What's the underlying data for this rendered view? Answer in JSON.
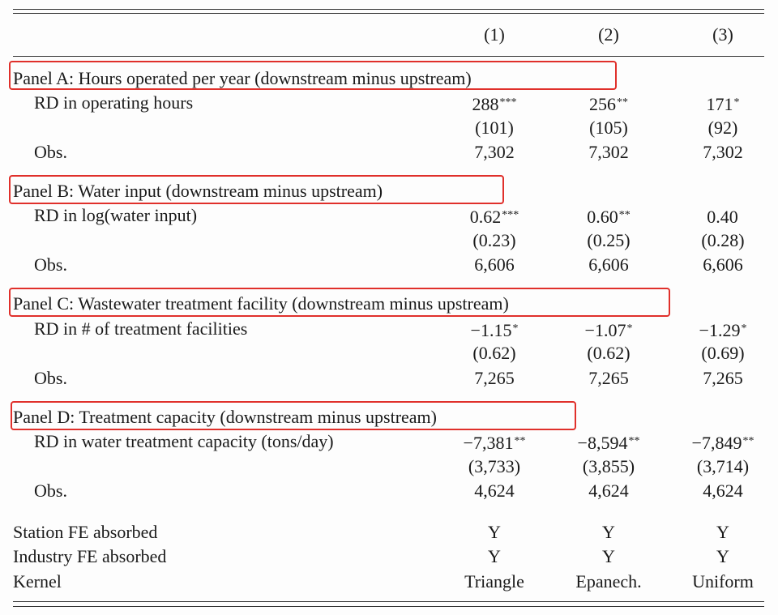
{
  "header": {
    "col1": "(1)",
    "col2": "(2)",
    "col3": "(3)"
  },
  "panel_a": {
    "title": "Panel A: Hours operated per year (downstream minus upstream)",
    "rows": [
      {
        "label": "RD in operating hours",
        "v1": "288",
        "s1": "***",
        "v2": "256",
        "s2": "**",
        "v3": "171",
        "s3": "*"
      },
      {
        "label": "",
        "v1": "(101)",
        "s1": "",
        "v2": "(105)",
        "s2": "",
        "v3": "(92)",
        "s3": ""
      },
      {
        "label": "Obs.",
        "v1": "7,302",
        "s1": "",
        "v2": "7,302",
        "s2": "",
        "v3": "7,302",
        "s3": ""
      }
    ]
  },
  "panel_b": {
    "title": "Panel B: Water input (downstream minus upstream)",
    "rows": [
      {
        "label": "RD in log(water input)",
        "v1": "0.62",
        "s1": "***",
        "v2": "0.60",
        "s2": "**",
        "v3": "0.40",
        "s3": ""
      },
      {
        "label": "",
        "v1": "(0.23)",
        "s1": "",
        "v2": "(0.25)",
        "s2": "",
        "v3": "(0.28)",
        "s3": ""
      },
      {
        "label": "Obs.",
        "v1": "6,606",
        "s1": "",
        "v2": "6,606",
        "s2": "",
        "v3": "6,606",
        "s3": ""
      }
    ]
  },
  "panel_c": {
    "title": "Panel C: Wastewater treatment facility (downstream minus upstream)",
    "rows": [
      {
        "label": "RD in # of treatment facilities",
        "v1": "−1.15",
        "s1": "*",
        "v2": "−1.07",
        "s2": "*",
        "v3": "−1.29",
        "s3": "*"
      },
      {
        "label": "",
        "v1": "(0.62)",
        "s1": "",
        "v2": "(0.62)",
        "s2": "",
        "v3": "(0.69)",
        "s3": ""
      },
      {
        "label": "Obs.",
        "v1": "7,265",
        "s1": "",
        "v2": "7,265",
        "s2": "",
        "v3": "7,265",
        "s3": ""
      }
    ]
  },
  "panel_d": {
    "title": "Panel D: Treatment capacity (downstream minus upstream)",
    "rows": [
      {
        "label": "RD in water treatment capacity (tons/day)",
        "v1": "−7,381",
        "s1": "**",
        "v2": "−8,594",
        "s2": "**",
        "v3": "−7,849",
        "s3": "**"
      },
      {
        "label": "",
        "v1": "(3,733)",
        "s1": "",
        "v2": "(3,855)",
        "s2": "",
        "v3": "(3,714)",
        "s3": ""
      },
      {
        "label": "Obs.",
        "v1": "4,624",
        "s1": "",
        "v2": "4,624",
        "s2": "",
        "v3": "4,624",
        "s3": ""
      }
    ]
  },
  "footer": [
    {
      "label": "Station FE absorbed",
      "v1": "Y",
      "v2": "Y",
      "v3": "Y"
    },
    {
      "label": "Industry FE absorbed",
      "v1": "Y",
      "v2": "Y",
      "v3": "Y"
    },
    {
      "label": "Kernel",
      "v1": "Triangle",
      "v2": "Epanech.",
      "v3": "Uniform"
    }
  ],
  "highlight_color": "#e0302b"
}
